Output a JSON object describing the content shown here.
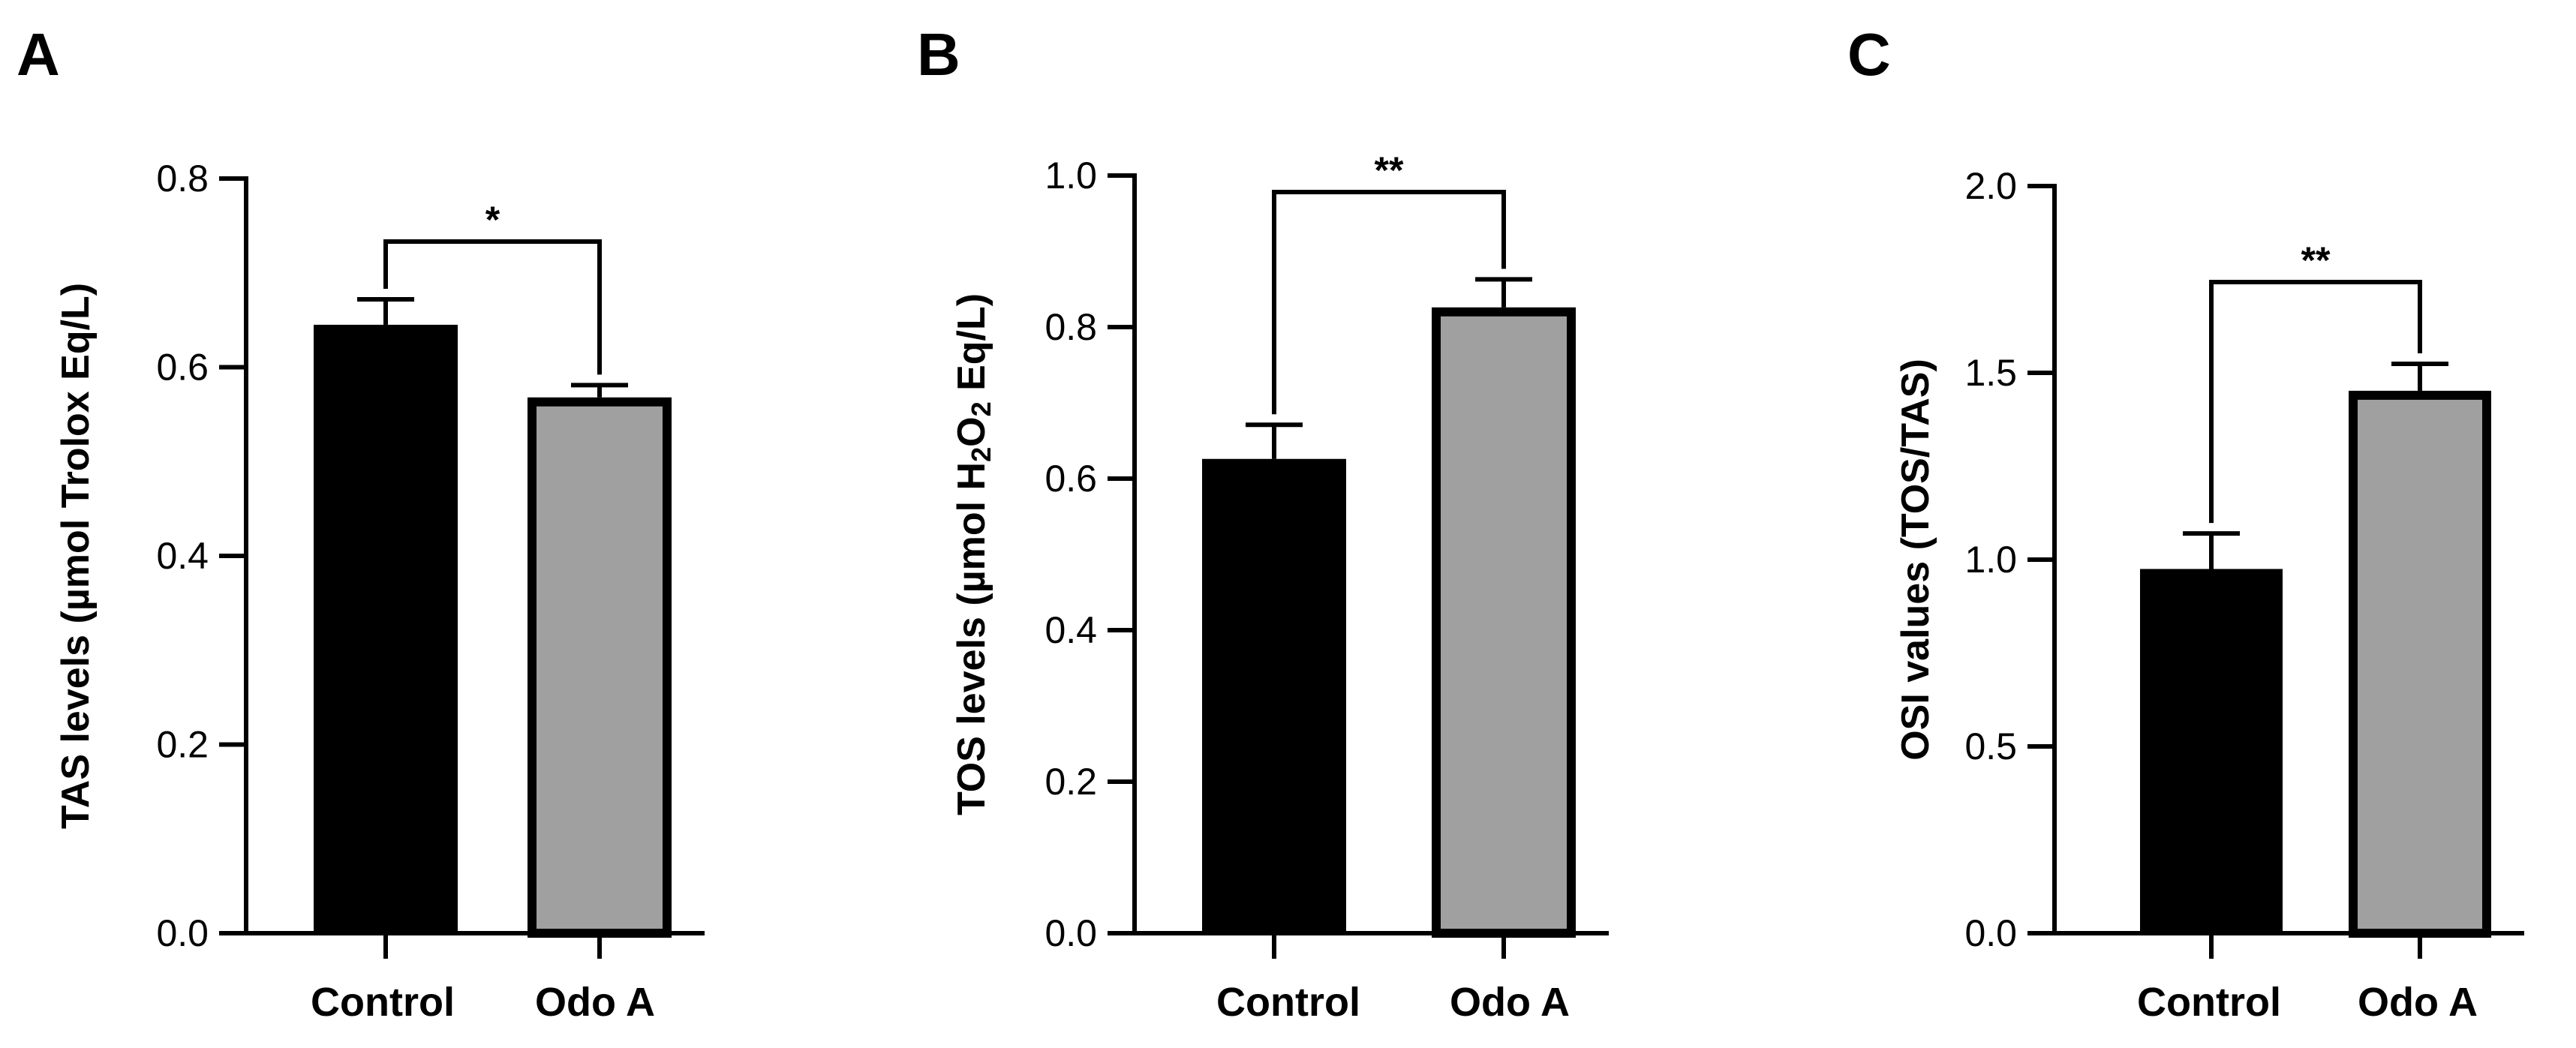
{
  "chart_data": [
    {
      "panel": "A",
      "type": "bar",
      "categories": [
        "Control",
        "Odo A"
      ],
      "values": [
        0.645,
        0.568
      ],
      "errors": [
        0.027,
        0.013
      ],
      "ylabel_parts": [
        {
          "text": "TAS levels (µmol Trolox Eq/L)",
          "sub": false
        }
      ],
      "ylim": [
        0,
        0.8
      ],
      "yticks": [
        "0.0",
        "0.2",
        "0.4",
        "0.6",
        "0.8"
      ],
      "significance": "*",
      "colors": [
        "#000000",
        "#a0a0a0"
      ]
    },
    {
      "panel": "B",
      "type": "bar",
      "categories": [
        "Control",
        "Odo A"
      ],
      "values": [
        0.626,
        0.826
      ],
      "errors": [
        0.045,
        0.037
      ],
      "ylabel_parts": [
        {
          "text": "TOS levels (µmol H",
          "sub": false
        },
        {
          "text": "2",
          "sub": true
        },
        {
          "text": "O",
          "sub": false
        },
        {
          "text": "2",
          "sub": true
        },
        {
          "text": " Eq/L)",
          "sub": false
        }
      ],
      "ylim": [
        0,
        1.0
      ],
      "yticks": [
        "0.0",
        "0.2",
        "0.4",
        "0.6",
        "0.8",
        "1.0"
      ],
      "significance": "**",
      "colors": [
        "#000000",
        "#a0a0a0"
      ]
    },
    {
      "panel": "C",
      "type": "bar",
      "categories": [
        "Control",
        "Odo A"
      ],
      "values": [
        0.975,
        1.452
      ],
      "errors": [
        0.095,
        0.072
      ],
      "ylabel_parts": [
        {
          "text": "OSI values (TOS/TAS)",
          "sub": false
        }
      ],
      "ylim": [
        0,
        2.0
      ],
      "yticks": [
        "0.0",
        "0.5",
        "1.0",
        "1.5",
        "2.0"
      ],
      "significance": "**",
      "colors": [
        "#000000",
        "#a0a0a0"
      ]
    }
  ]
}
